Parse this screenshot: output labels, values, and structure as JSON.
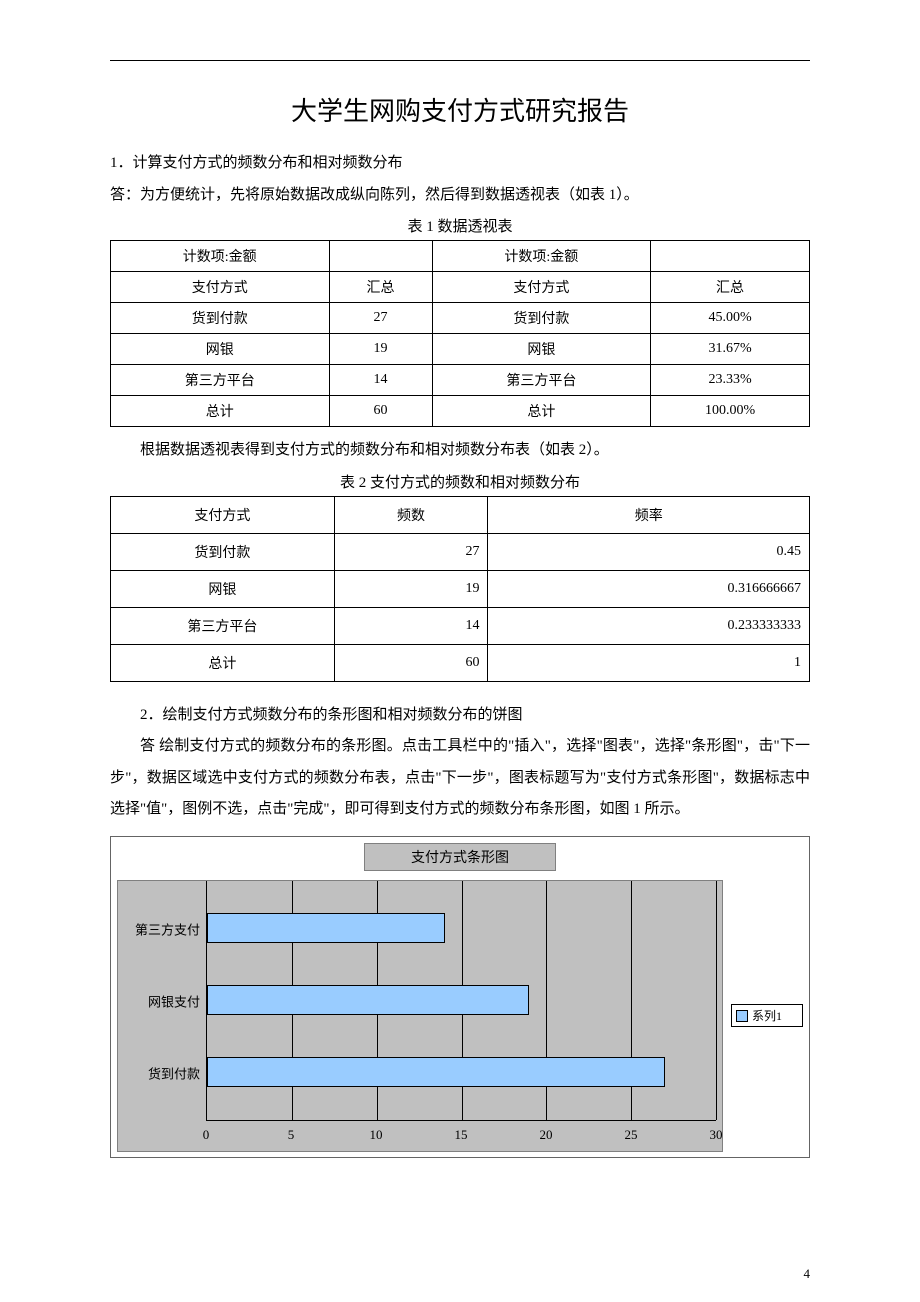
{
  "title": "大学生网购支付方式研究报告",
  "section1_heading": "1．计算支付方式的频数分布和相对频数分布",
  "section1_answer": "答：为方便统计，先将原始数据改成纵向陈列，然后得到数据透视表（如表 1）。",
  "table1_caption": "表 1  数据透视表",
  "pivot": {
    "h_count": "计数项:金额",
    "h_method": "支付方式",
    "h_total": "汇总",
    "rows": [
      {
        "label": "货到付款",
        "count": "27",
        "pct": "45.00%"
      },
      {
        "label": "网银",
        "count": "19",
        "pct": "31.67%"
      },
      {
        "label": "第三方平台",
        "count": "14",
        "pct": "23.33%"
      },
      {
        "label": "总计",
        "count": "60",
        "pct": "100.00%"
      }
    ]
  },
  "table2_intro": "根据数据透视表得到支付方式的频数分布和相对频数分布表（如表 2）。",
  "table2_caption": "表 2 支付方式的频数和相对频数分布",
  "freq": {
    "h_method": "支付方式",
    "h_count": "频数",
    "h_rate": "频率",
    "rows": [
      {
        "label": "货到付款",
        "count": "27",
        "rate": "0.45"
      },
      {
        "label": "网银",
        "count": "19",
        "rate": "0.316666667"
      },
      {
        "label": "第三方平台",
        "count": "14",
        "rate": "0.233333333"
      },
      {
        "label": "总计",
        "count": "60",
        "rate": "1"
      }
    ]
  },
  "section2_heading": "2．绘制支付方式频数分布的条形图和相对频数分布的饼图",
  "section2_answer": "答 绘制支付方式的频数分布的条形图。点击工具栏中的\"插入\"，选择\"图表\"，选择\"条形图\"，击\"下一步\"，数据区域选中支付方式的频数分布表，点击\"下一步\"，图表标题写为\"支付方式条形图\"，数据标志中选择\"值\"，图例不选，点击\"完成\"，即可得到支付方式的频数分布条形图，如图 1 所示。",
  "chart": {
    "type": "bar",
    "title": "支付方式条形图",
    "categories": [
      "第三方支付",
      "网银支付",
      "货到付款"
    ],
    "values": [
      14,
      19,
      27
    ],
    "xmax": 30,
    "xtick_step": 5,
    "xticks": [
      "0",
      "5",
      "10",
      "15",
      "20",
      "25",
      "30"
    ],
    "bar_color": "#99ccff",
    "plot_bg": "#c0c0c0",
    "grid_color": "#000000",
    "legend_label": "系列1"
  },
  "page_number": "4"
}
